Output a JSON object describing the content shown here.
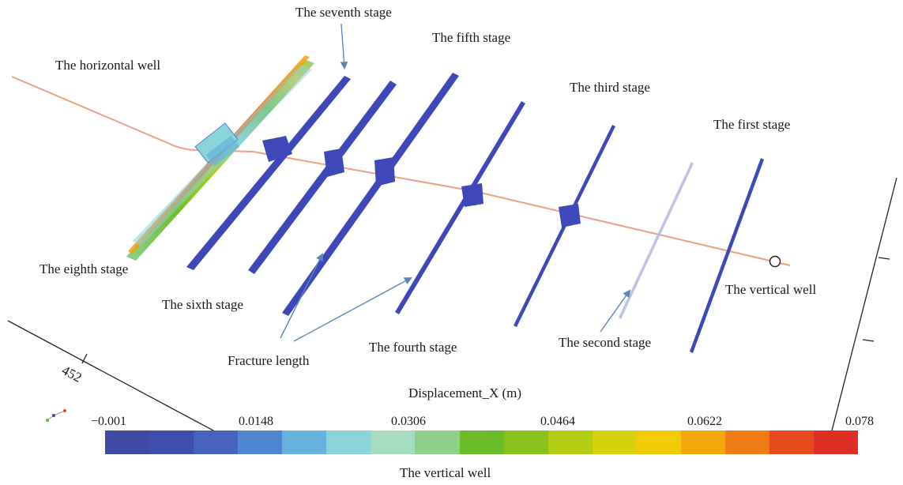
{
  "labels": {
    "seventh_stage": "The seventh stage",
    "fifth_stage": "The fifth stage",
    "horizontal_well": "The horizontal well",
    "third_stage": "The third stage",
    "first_stage": "The first stage",
    "eighth_stage": "The eighth stage",
    "sixth_stage": "The sixth stage",
    "fracture_length": "Fracture length",
    "fourth_stage": "The fourth stage",
    "second_stage": "The second stage",
    "vertical_well_marker": "The vertical well",
    "vertical_well_caption": "The vertical well",
    "axis_value": "452"
  },
  "legend": {
    "title": "Displacement_X (m)",
    "ticks": [
      "−0.001",
      "0.0148",
      "0.0306",
      "0.0464",
      "0.0622",
      "0.078"
    ],
    "colors": [
      "#3f4aa3",
      "#3f4fae",
      "#4563bf",
      "#4f86cf",
      "#66b2dc",
      "#8ad4da",
      "#a6dcc0",
      "#8fd08b",
      "#6dbd2a",
      "#8ac21d",
      "#b3cd14",
      "#d8d20c",
      "#f1cb06",
      "#f3a90b",
      "#ee7b14",
      "#e54a1d",
      "#dd2f23"
    ]
  },
  "colors": {
    "well_line": "#f0a080",
    "fracture": "#3f48b8",
    "pointer": "#5b87b5",
    "axis": "#222222"
  }
}
